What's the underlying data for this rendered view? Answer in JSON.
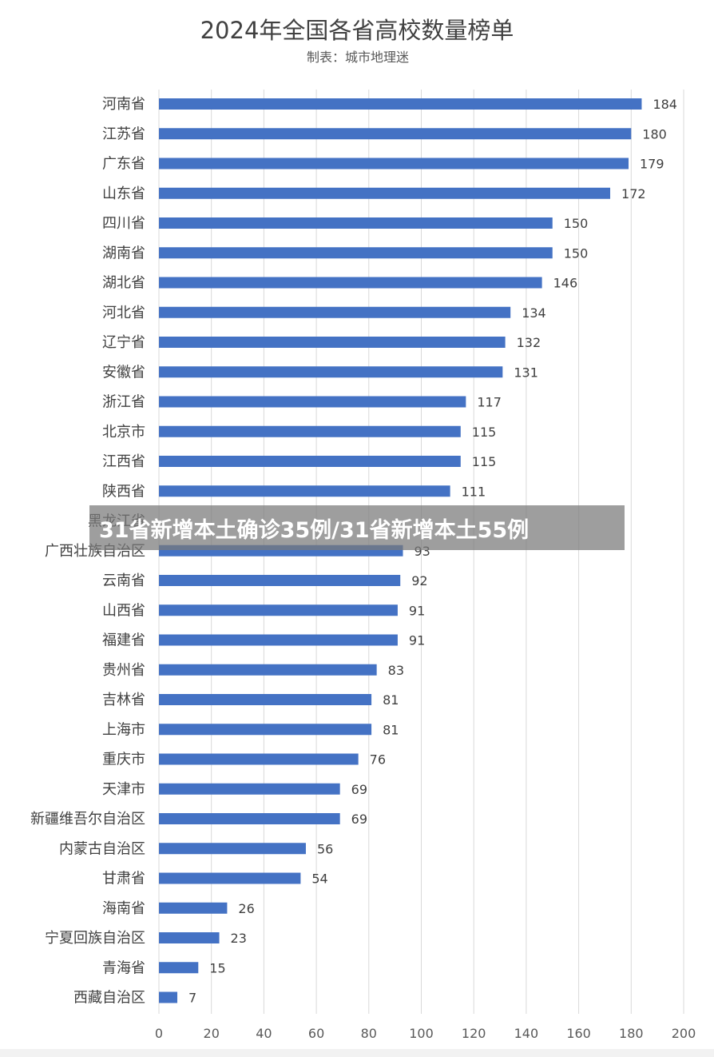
{
  "chart_data": {
    "type": "bar",
    "orientation": "horizontal",
    "title": "2024年全国各省高校数量榜单",
    "subtitle": "制表：城市地理迷",
    "categories": [
      "河南省",
      "江苏省",
      "广东省",
      "山东省",
      "四川省",
      "湖南省",
      "湖北省",
      "河北省",
      "辽宁省",
      "安徽省",
      "浙江省",
      "北京市",
      "江西省",
      "陕西省",
      "黑龙江省",
      "广西壮族自治区",
      "云南省",
      "山西省",
      "福建省",
      "贵州省",
      "吉林省",
      "上海市",
      "重庆市",
      "天津市",
      "新疆维吾尔自治区",
      "内蒙古自治区",
      "甘肃省",
      "海南省",
      "宁夏回族自治区",
      "青海省",
      "西藏自治区"
    ],
    "values": [
      184,
      180,
      179,
      172,
      150,
      150,
      146,
      134,
      132,
      131,
      117,
      115,
      115,
      111,
      null,
      93,
      92,
      91,
      91,
      83,
      81,
      81,
      76,
      69,
      69,
      56,
      54,
      26,
      23,
      15,
      7
    ],
    "xlim": [
      0,
      200
    ],
    "xticks": [
      0,
      20,
      40,
      60,
      80,
      100,
      120,
      140,
      160,
      180,
      200
    ],
    "grid": "vertical",
    "legend": "none",
    "bar_color": "#4472c4"
  },
  "overlay": {
    "text": "31省新增本土确诊35例/31省新增本土55例"
  }
}
